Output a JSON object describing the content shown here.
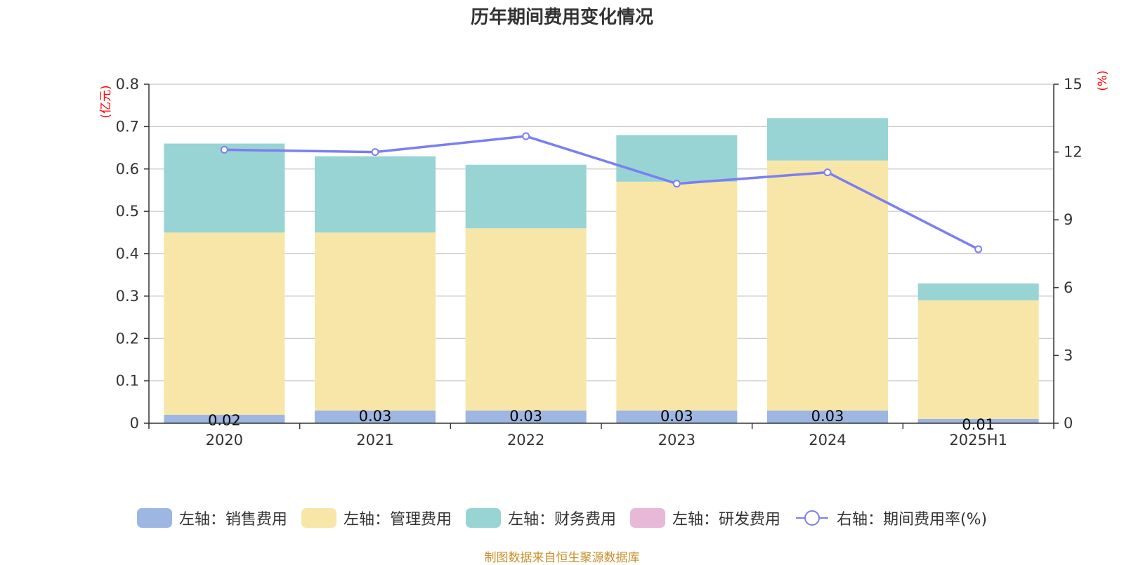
{
  "chart_data": {
    "type": "bar",
    "title": "历年期间费用变化情况",
    "categories": [
      "2020",
      "2021",
      "2022",
      "2023",
      "2024",
      "2025H1"
    ],
    "y_left_unit": "(亿元)",
    "y_right_unit": "(%)",
    "y_left_range": [
      0,
      0.8
    ],
    "y_left_ticks": [
      "0",
      "0.1",
      "0.2",
      "0.3",
      "0.4",
      "0.5",
      "0.6",
      "0.7",
      "0.8"
    ],
    "y_right_range": [
      0,
      15
    ],
    "y_right_ticks": [
      "0",
      "3",
      "6",
      "9",
      "12",
      "15"
    ],
    "grid": true,
    "legend_position": "bottom",
    "stacked": true,
    "series": [
      {
        "name": "左轴：销售费用",
        "axis": "left",
        "kind": "bar",
        "color": "#9db6e2",
        "values": [
          0.02,
          0.03,
          0.03,
          0.03,
          0.03,
          0.01
        ],
        "labels": [
          "0.02",
          "0.03",
          "0.03",
          "0.03",
          "0.03",
          "0.01"
        ]
      },
      {
        "name": "左轴：管理费用",
        "axis": "left",
        "kind": "bar",
        "color": "#f7e6a8",
        "values": [
          0.43,
          0.42,
          0.43,
          0.54,
          0.59,
          0.28
        ]
      },
      {
        "name": "左轴：财务费用",
        "axis": "left",
        "kind": "bar",
        "color": "#98d4d4",
        "values": [
          0.21,
          0.18,
          0.15,
          0.11,
          0.1,
          0.04
        ]
      },
      {
        "name": "左轴：研发费用",
        "axis": "left",
        "kind": "bar",
        "color": "#e8b8d8",
        "values": [
          0,
          0,
          0,
          0,
          0,
          0
        ]
      },
      {
        "name": "右轴：期间费用率(%)",
        "axis": "right",
        "kind": "line",
        "color": "#7b7ff0",
        "values": [
          12.1,
          12.0,
          12.7,
          10.6,
          11.1,
          7.7
        ]
      }
    ]
  },
  "footer": "制图数据来自恒生聚源数据库"
}
